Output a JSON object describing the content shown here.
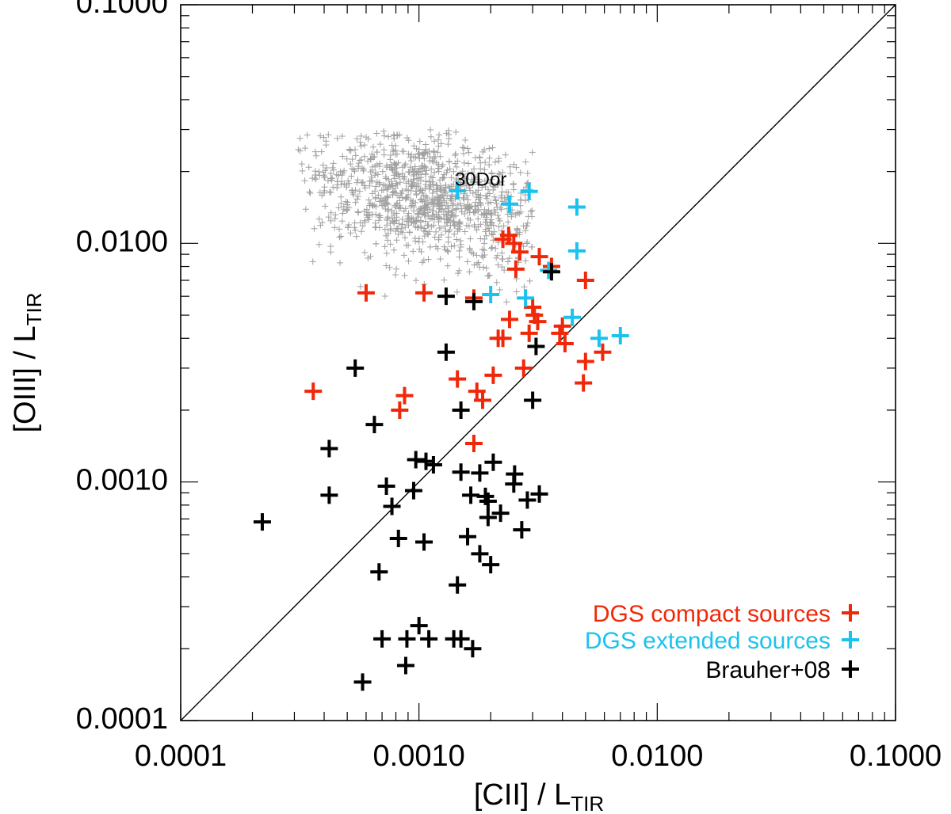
{
  "chart_data": {
    "type": "scatter",
    "x_scale": "log",
    "y_scale": "log",
    "xlim": [
      0.0001,
      0.1
    ],
    "ylim": [
      0.0001,
      0.1
    ],
    "x_ticks": [
      "0.0001",
      "0.0010",
      "0.0100",
      "0.1000"
    ],
    "y_ticks": [
      "0.0001",
      "0.0010",
      "0.0100",
      "0.1000"
    ],
    "xlabel": {
      "main": "[CII] / L",
      "sub": "TIR"
    },
    "ylabel": {
      "main": "[OIII] / L",
      "sub": "TIR"
    },
    "reference_line": "y = x",
    "legend_position": "bottom-right",
    "annotation": {
      "text": "30Dor",
      "x": 0.0017,
      "y": 0.0172
    },
    "background_cloud": {
      "description_color": "#a0a0a0",
      "center_x": 0.0011,
      "center_y": 0.0155,
      "region_xlim": [
        0.0003,
        0.003
      ],
      "region_ylim": [
        0.0055,
        0.03
      ]
    },
    "series": [
      {
        "name": "DGS compact sources",
        "color": "#f0280a",
        "points": [
          [
            0.00036,
            0.0024
          ],
          [
            0.0006,
            0.0062
          ],
          [
            0.00105,
            0.0062
          ],
          [
            0.00083,
            0.002
          ],
          [
            0.00087,
            0.0023
          ],
          [
            0.00145,
            0.0027
          ],
          [
            0.00175,
            0.0024
          ],
          [
            0.00185,
            0.0022
          ],
          [
            0.0017,
            0.00145
          ],
          [
            0.0017,
            0.0059
          ],
          [
            0.00205,
            0.0028
          ],
          [
            0.00215,
            0.004
          ],
          [
            0.00225,
            0.004
          ],
          [
            0.0024,
            0.0048
          ],
          [
            0.00225,
            0.0104
          ],
          [
            0.00238,
            0.0108
          ],
          [
            0.0025,
            0.01
          ],
          [
            0.00255,
            0.0078
          ],
          [
            0.00265,
            0.0092
          ],
          [
            0.00275,
            0.003
          ],
          [
            0.0029,
            0.0042
          ],
          [
            0.003,
            0.0054
          ],
          [
            0.00305,
            0.005
          ],
          [
            0.00315,
            0.0047
          ],
          [
            0.0032,
            0.0088
          ],
          [
            0.0036,
            0.008
          ],
          [
            0.0039,
            0.0042
          ],
          [
            0.004,
            0.0045
          ],
          [
            0.0041,
            0.0038
          ],
          [
            0.0049,
            0.0026
          ],
          [
            0.005,
            0.0032
          ],
          [
            0.005,
            0.007
          ],
          [
            0.0059,
            0.0035
          ]
        ]
      },
      {
        "name": "DGS extended sources",
        "color": "#1bc2ee",
        "points": [
          [
            0.00145,
            0.0166
          ],
          [
            0.002,
            0.0061
          ],
          [
            0.0024,
            0.0146
          ],
          [
            0.0029,
            0.0165
          ],
          [
            0.0028,
            0.0059
          ],
          [
            0.0035,
            0.0077
          ],
          [
            0.0044,
            0.0049
          ],
          [
            0.0046,
            0.0142
          ],
          [
            0.0046,
            0.0093
          ],
          [
            0.0057,
            0.004
          ],
          [
            0.007,
            0.0041
          ]
        ]
      },
      {
        "name": "Brauher+08",
        "color": "#000000",
        "points": [
          [
            0.00022,
            0.00068
          ],
          [
            0.00042,
            0.00138
          ],
          [
            0.00042,
            0.00088
          ],
          [
            0.00054,
            0.003
          ],
          [
            0.00058,
            0.000145
          ],
          [
            0.00065,
            0.00174
          ],
          [
            0.00068,
            0.00042
          ],
          [
            0.0007,
            0.00022
          ],
          [
            0.00073,
            0.00096
          ],
          [
            0.00077,
            0.00079
          ],
          [
            0.00082,
            0.00058
          ],
          [
            0.00088,
            0.00017
          ],
          [
            0.00089,
            0.00022
          ],
          [
            0.00095,
            0.00092
          ],
          [
            0.00097,
            0.00124
          ],
          [
            0.001,
            0.00025
          ],
          [
            0.00105,
            0.00056
          ],
          [
            0.00107,
            0.00122
          ],
          [
            0.0011,
            0.00022
          ],
          [
            0.00115,
            0.00118
          ],
          [
            0.0013,
            0.006
          ],
          [
            0.0013,
            0.0035
          ],
          [
            0.0014,
            0.00022
          ],
          [
            0.00145,
            0.00037
          ],
          [
            0.0015,
            0.00022
          ],
          [
            0.0015,
            0.002
          ],
          [
            0.0015,
            0.0011
          ],
          [
            0.0016,
            0.00059
          ],
          [
            0.00165,
            0.00088
          ],
          [
            0.00168,
            0.0002
          ],
          [
            0.0017,
            0.0057
          ],
          [
            0.0018,
            0.0005
          ],
          [
            0.0018,
            0.00109
          ],
          [
            0.0019,
            0.00087
          ],
          [
            0.00195,
            0.00071
          ],
          [
            0.00195,
            0.00083
          ],
          [
            0.002,
            0.00045
          ],
          [
            0.00205,
            0.00121
          ],
          [
            0.0022,
            0.00074
          ],
          [
            0.0025,
            0.00098
          ],
          [
            0.00252,
            0.00108
          ],
          [
            0.0027,
            0.00063
          ],
          [
            0.00285,
            0.00084
          ],
          [
            0.003,
            0.0022
          ],
          [
            0.0031,
            0.0037
          ],
          [
            0.0032,
            0.00089
          ],
          [
            0.0036,
            0.0076
          ]
        ]
      }
    ]
  }
}
